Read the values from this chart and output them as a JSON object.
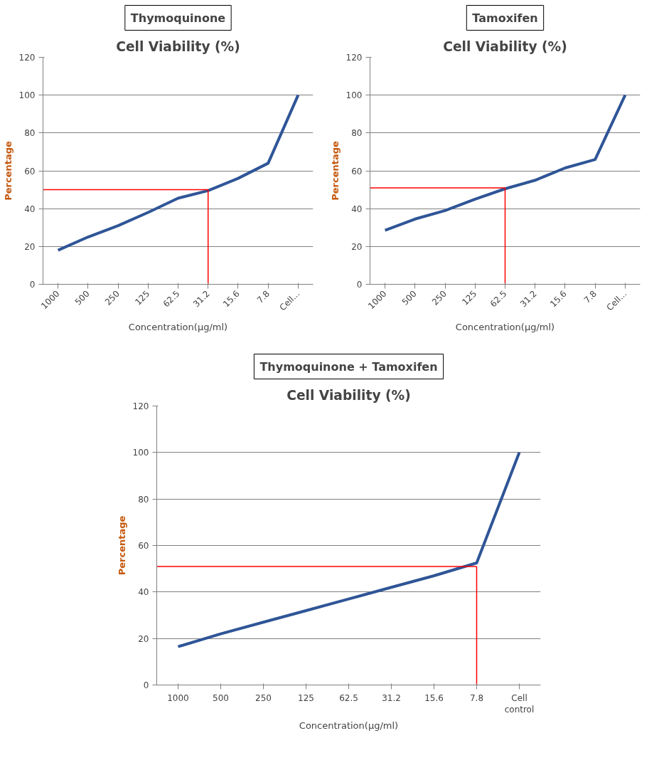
{
  "chart_data": [
    {
      "type": "line",
      "subtitle": "Thymoquinone",
      "title": "Cell Viability (%)",
      "xlabel": "Concentration(µg/ml)",
      "ylabel": "Percentage",
      "categories": [
        "1000",
        "500",
        "250",
        "125",
        "62.5",
        "31.2",
        "15.6",
        "7.8",
        "Cell..."
      ],
      "series": [
        {
          "color": "#2f5597",
          "values": [
            18,
            25,
            31,
            38,
            45.5,
            49.5,
            56,
            64,
            100
          ]
        }
      ],
      "ylim": [
        0,
        120
      ],
      "yticks": [
        0,
        20,
        40,
        60,
        80,
        100,
        120
      ],
      "grid": "y",
      "marker": "none",
      "line_style": "solid",
      "ref_lines": [
        {
          "axis": "y",
          "value": 50,
          "color": "#ff0000"
        },
        {
          "axis": "x",
          "value": "31.2",
          "color": "#ff0000"
        }
      ]
    },
    {
      "type": "line",
      "subtitle": "Tamoxifen",
      "title": "Cell Viability (%)",
      "xlabel": "Concentration(µg/ml)",
      "ylabel": "Percentage",
      "categories": [
        "1000",
        "500",
        "250",
        "125",
        "62.5",
        "31.2",
        "15.6",
        "7.8",
        "Cell..."
      ],
      "series": [
        {
          "color": "#2f5597",
          "values": [
            28.5,
            34.5,
            39,
            45,
            50.5,
            55,
            61.5,
            66,
            100
          ]
        }
      ],
      "ylim": [
        0,
        120
      ],
      "yticks": [
        0,
        20,
        40,
        60,
        80,
        100,
        120
      ],
      "grid": "y",
      "marker": "none",
      "line_style": "solid",
      "ref_lines": [
        {
          "axis": "y",
          "value": 51,
          "color": "#ff0000"
        },
        {
          "axis": "x",
          "value": "62.5",
          "color": "#ff0000"
        }
      ]
    },
    {
      "type": "line",
      "subtitle": "Thymoquinone + Tamoxifen",
      "title": "Cell Viability (%)",
      "xlabel": "Concentration(µg/ml)",
      "ylabel": "Percentage",
      "categories": [
        "1000",
        "500",
        "250",
        "125",
        "62.5",
        "31.2",
        "15.6",
        "7.8",
        "Cell control"
      ],
      "series": [
        {
          "color": "#2f5597",
          "values": [
            16.5,
            22,
            27,
            32,
            37,
            42,
            47,
            52.5,
            100
          ]
        }
      ],
      "ylim": [
        0,
        120
      ],
      "yticks": [
        0,
        20,
        40,
        60,
        80,
        100,
        120
      ],
      "grid": "y",
      "marker": "none",
      "line_style": "solid",
      "ref_lines": [
        {
          "axis": "y",
          "value": 51,
          "color": "#ff0000"
        },
        {
          "axis": "x",
          "value": "7.8",
          "color": "#ff0000"
        }
      ]
    }
  ]
}
